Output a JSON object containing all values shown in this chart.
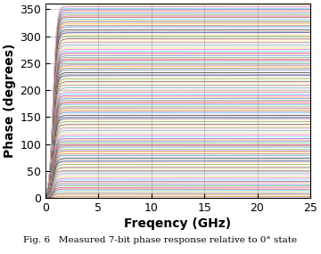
{
  "xlabel": "Freqency (GHz)",
  "ylabel": "Phase (degrees)",
  "xlim": [
    0,
    25
  ],
  "ylim": [
    0,
    360
  ],
  "yticks": [
    0,
    50,
    100,
    150,
    200,
    250,
    300,
    350
  ],
  "xticks": [
    0,
    5,
    10,
    15,
    20,
    25
  ],
  "n_states": 128,
  "freq_end": 25,
  "n_freq_points": 300,
  "caption": "Fig. 6   Measured 7-bit phase response relative to 0° state",
  "grid_color": "#777777",
  "background_color": "#ffffff",
  "linewidth": 0.45,
  "colors_cycle": [
    "#0072BD",
    "#D95319",
    "#EDB120",
    "#7E2F8E",
    "#77AC30",
    "#4DBEEE",
    "#A2142F",
    "#e6194b",
    "#3cb44b",
    "#4363d8",
    "#f58231",
    "#911eb4",
    "#42d4f4",
    "#f032e6",
    "#bfef45",
    "#fabed4",
    "#469990",
    "#dcbeff",
    "#9A6324",
    "#fffac8",
    "#800000",
    "#aaffc3",
    "#808000",
    "#ffd8b1",
    "#000075",
    "#808080",
    "#000000",
    "#e6beff"
  ]
}
